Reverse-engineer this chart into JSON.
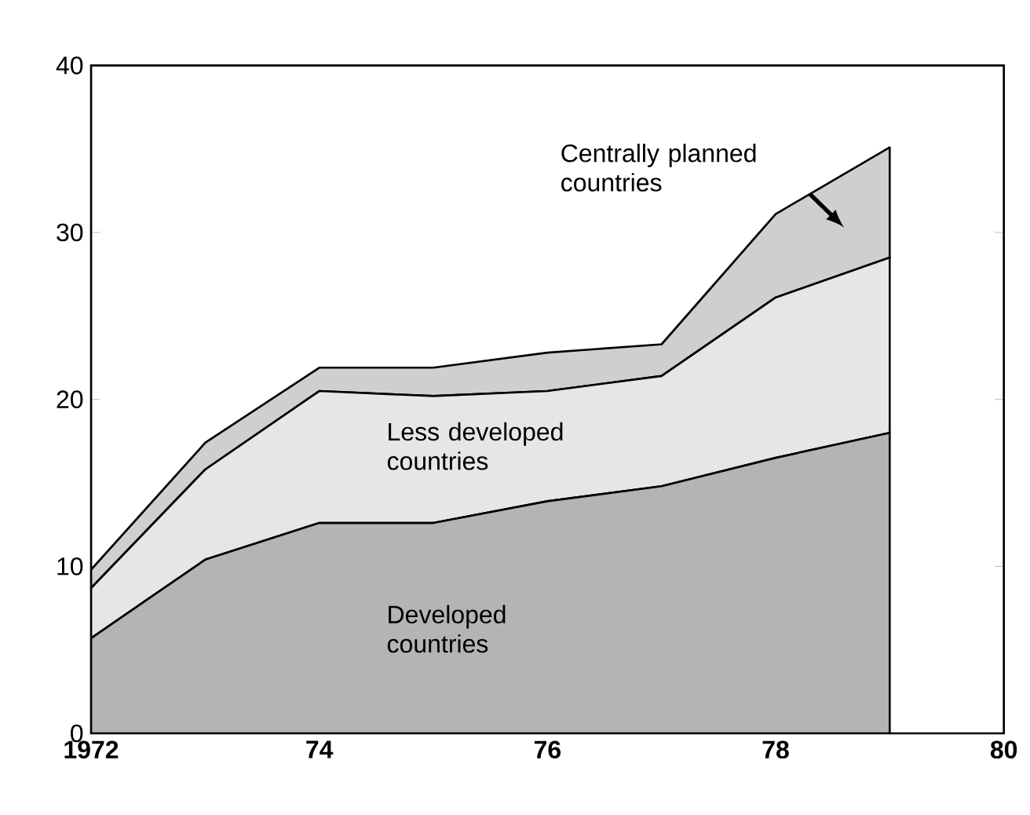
{
  "chart_data": {
    "type": "area",
    "stacked": true,
    "x": [
      1972,
      1973,
      1974,
      1975,
      1976,
      1977,
      1978,
      1979
    ],
    "xlim": [
      1972,
      1980
    ],
    "ylim": [
      0,
      40
    ],
    "xticks": [
      1972,
      {
        "value": 1974,
        "label": "74"
      },
      {
        "value": 1976,
        "label": "76"
      },
      {
        "value": 1978,
        "label": "78"
      },
      {
        "value": 1980,
        "label": "80"
      }
    ],
    "yticks": [
      0,
      10,
      20,
      30,
      40
    ],
    "series": [
      {
        "name": "Developed countries",
        "color": "#b4b4b4",
        "values": [
          5.7,
          10.4,
          12.6,
          12.6,
          13.9,
          14.8,
          16.5,
          18.0
        ]
      },
      {
        "name": "Less developed countries",
        "color": "#e6e6e6",
        "values": [
          3.0,
          5.4,
          7.9,
          7.6,
          6.6,
          6.6,
          9.6,
          10.5
        ]
      },
      {
        "name": "Centrally planned countries",
        "color": "#cfcfcf",
        "values": [
          1.1,
          1.6,
          1.4,
          1.7,
          2.3,
          1.9,
          5.0,
          6.6
        ]
      }
    ]
  }
}
